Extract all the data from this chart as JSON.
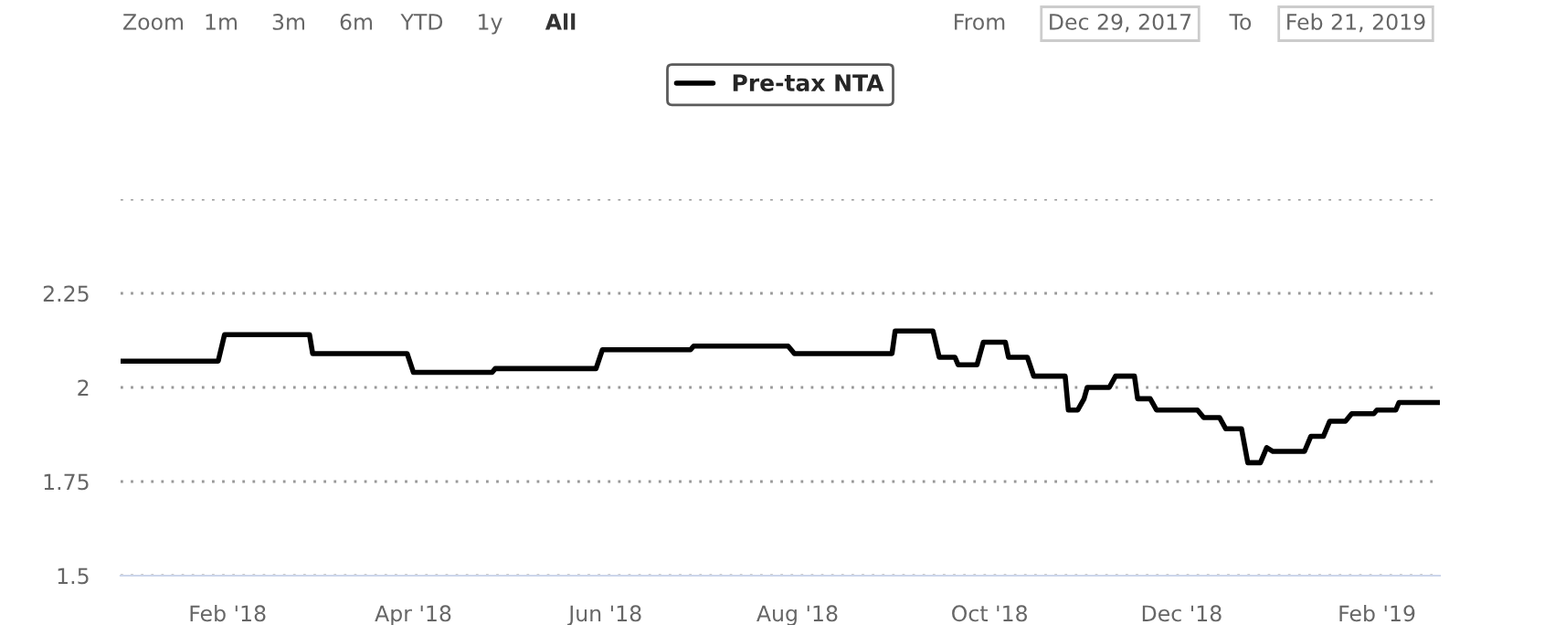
{
  "chart_data": {
    "type": "line",
    "annotations": [
      "Zoom",
      "1m",
      "3m",
      "6m",
      "YTD",
      "1y",
      "All",
      "From",
      "Dec 29, 2017",
      "To",
      "Feb 21, 2019"
    ],
    "series": [
      {
        "name": "Pre-tax NTA",
        "color": "#000000",
        "x": [
          "2017-12-29",
          "2018-01-29",
          "2018-01-31",
          "2018-02-27",
          "2018-02-28",
          "2018-03-30",
          "2018-04-01",
          "2018-04-26",
          "2018-04-27",
          "2018-05-29",
          "2018-05-31",
          "2018-06-28",
          "2018-06-29",
          "2018-07-29",
          "2018-07-31",
          "2018-08-31",
          "2018-09-01",
          "2018-09-13",
          "2018-09-15",
          "2018-09-20",
          "2018-09-21",
          "2018-09-27",
          "2018-09-29",
          "2018-10-06",
          "2018-10-07",
          "2018-10-13",
          "2018-10-15",
          "2018-10-19",
          "2018-10-20",
          "2018-10-25",
          "2018-10-26",
          "2018-10-29",
          "2018-10-31",
          "2018-11-01",
          "2018-11-02",
          "2018-11-08",
          "2018-11-10",
          "2018-11-16",
          "2018-11-17",
          "2018-11-21",
          "2018-11-23",
          "2018-12-06",
          "2018-12-08",
          "2018-12-13",
          "2018-12-15",
          "2018-12-20",
          "2018-12-22",
          "2018-12-26",
          "2018-12-28",
          "2018-12-30",
          "2019-01-09",
          "2019-01-11",
          "2019-01-15",
          "2019-01-17",
          "2019-01-22",
          "2019-01-24",
          "2019-01-31",
          "2019-02-01",
          "2019-02-07",
          "2019-02-08",
          "2019-02-21"
        ],
        "values": [
          2.07,
          2.07,
          2.14,
          2.14,
          2.09,
          2.09,
          2.04,
          2.04,
          2.05,
          2.05,
          2.1,
          2.1,
          2.11,
          2.11,
          2.09,
          2.09,
          2.15,
          2.15,
          2.08,
          2.08,
          2.06,
          2.06,
          2.12,
          2.12,
          2.08,
          2.08,
          2.03,
          2.03,
          2.03,
          2.03,
          1.94,
          1.94,
          1.97,
          2.0,
          2.0,
          2.0,
          2.03,
          2.03,
          1.97,
          1.97,
          1.94,
          1.94,
          1.92,
          1.92,
          1.89,
          1.89,
          1.8,
          1.8,
          1.84,
          1.83,
          1.83,
          1.87,
          1.87,
          1.91,
          1.91,
          1.93,
          1.93,
          1.94,
          1.94,
          1.96,
          1.96
        ]
      }
    ],
    "xlim": [
      "2017-12-29",
      "2019-02-21"
    ],
    "xticks": [
      {
        "value": "2018-02-01",
        "label": "Feb '18"
      },
      {
        "value": "2018-04-01",
        "label": "Apr '18"
      },
      {
        "value": "2018-06-01",
        "label": "Jun '18"
      },
      {
        "value": "2018-08-01",
        "label": "Aug '18"
      },
      {
        "value": "2018-10-01",
        "label": "Oct '18"
      },
      {
        "value": "2018-12-01",
        "label": "Dec '18"
      },
      {
        "value": "2019-02-01",
        "label": "Feb '19"
      }
    ],
    "ylim": [
      1.5,
      2.5
    ],
    "yticks": [
      1.5,
      1.75,
      2,
      2.25,
      {
        "value": 2.5,
        "label": null
      }
    ],
    "grid": "y",
    "legend": "top",
    "marker": "none",
    "line_style": "solid"
  }
}
